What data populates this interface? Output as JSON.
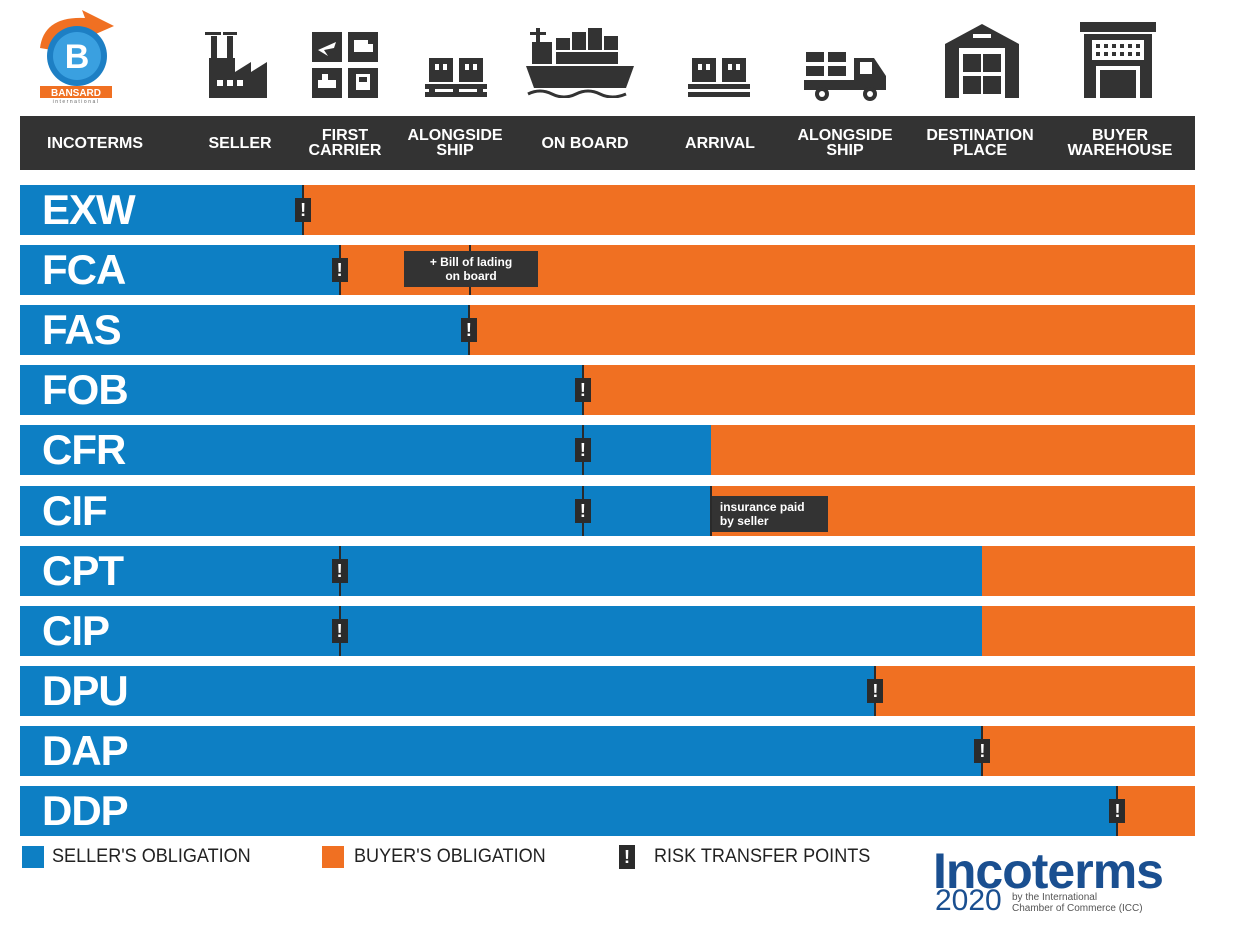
{
  "logo": {
    "name": "BANSARD",
    "sub": "international"
  },
  "header": {
    "columns": [
      "INCOTERMS",
      "SELLER",
      "FIRST\nCARRIER",
      "ALONGSIDE\nSHIP",
      "ON BOARD",
      "ARRIVAL",
      "ALONGSIDE\nSHIP",
      "DESTINATION\nPLACE",
      "BUYER\nWAREHOUSE"
    ]
  },
  "icons": [
    "factory-icon",
    "transport-modes-icon",
    "pallet-icon",
    "container-ship-icon",
    "pallet-icon",
    "truck-icon",
    "warehouse-icon",
    "buyer-warehouse-icon"
  ],
  "rows": [
    {
      "term": "EXW",
      "seller_pct": 24.1,
      "risk_pct": 24.1
    },
    {
      "term": "FCA",
      "seller_pct": 27.2,
      "risk_pct": 27.2,
      "note": "+ Bill of lading\non board"
    },
    {
      "term": "FAS",
      "seller_pct": 38.2,
      "risk_pct": 38.2
    },
    {
      "term": "FOB",
      "seller_pct": 47.9,
      "risk_pct": 47.9
    },
    {
      "term": "CFR",
      "seller_pct": 58.8,
      "risk_pct": 47.9
    },
    {
      "term": "CIF",
      "seller_pct": 58.8,
      "risk_pct": 47.9,
      "note": "insurance paid\nby seller"
    },
    {
      "term": "CPT",
      "seller_pct": 81.9,
      "risk_pct": 27.2
    },
    {
      "term": "CIP",
      "seller_pct": 81.9,
      "risk_pct": 27.2
    },
    {
      "term": "DPU",
      "seller_pct": 72.8,
      "risk_pct": 72.8
    },
    {
      "term": "DAP",
      "seller_pct": 81.9,
      "risk_pct": 81.9
    },
    {
      "term": "DDP",
      "seller_pct": 93.4,
      "risk_pct": 93.4
    }
  ],
  "risk_symbol": "!",
  "legend": {
    "seller": "SELLER'S OBLIGATION",
    "buyer": "BUYER'S OBLIGATION",
    "risk": "RISK TRANSFER POINTS"
  },
  "brand": {
    "name": "Incoterms",
    "year": "2020",
    "by": "by the International\nChamber of Commerce (ICC)"
  },
  "colors": {
    "seller": "#0d7fc4",
    "buyer": "#f07022",
    "header": "#333333",
    "brand": "#1a4f90",
    "logo_orange": "#f07022"
  }
}
